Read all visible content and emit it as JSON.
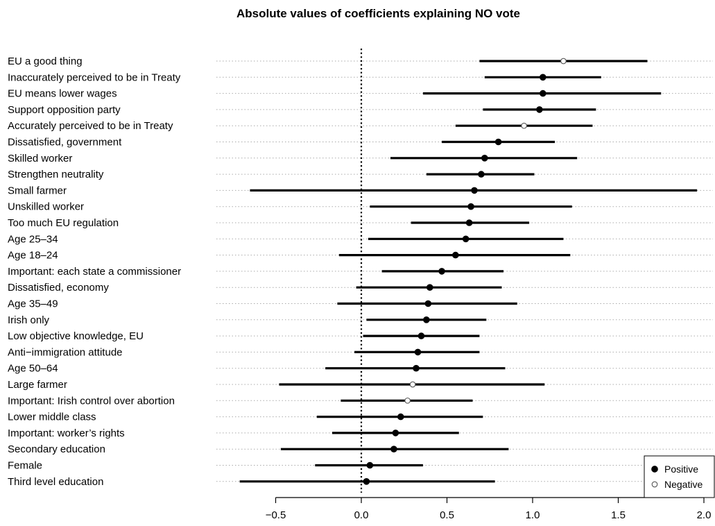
{
  "chart_data": {
    "type": "dot-interval",
    "title": "Absolute values of coefficients explaining NO vote",
    "xlabel": "",
    "ylabel": "",
    "xlim": [
      -0.7,
      2.0
    ],
    "xticks": [
      -0.5,
      0.0,
      0.5,
      1.0,
      1.5,
      2.0
    ],
    "xtick_labels": [
      "−0.5",
      "0.0",
      "0.5",
      "1.0",
      "1.5",
      "2.0"
    ],
    "reference_line": 0.0,
    "legend": {
      "placement": "bottom-right",
      "entries": [
        {
          "label": "Positive",
          "marker": "filled"
        },
        {
          "label": "Negative",
          "marker": "open"
        }
      ]
    },
    "items": [
      {
        "label": "EU a good thing",
        "estimate": 1.18,
        "lower": 0.69,
        "upper": 1.67,
        "sign": "negative"
      },
      {
        "label": "Inaccurately perceived to be in Treaty",
        "estimate": 1.06,
        "lower": 0.72,
        "upper": 1.4,
        "sign": "positive"
      },
      {
        "label": "EU means lower wages",
        "estimate": 1.06,
        "lower": 0.36,
        "upper": 1.75,
        "sign": "positive"
      },
      {
        "label": "Support opposition party",
        "estimate": 1.04,
        "lower": 0.71,
        "upper": 1.37,
        "sign": "positive"
      },
      {
        "label": "Accurately perceived to be in Treaty",
        "estimate": 0.95,
        "lower": 0.55,
        "upper": 1.35,
        "sign": "negative"
      },
      {
        "label": "Dissatisfied, government",
        "estimate": 0.8,
        "lower": 0.47,
        "upper": 1.13,
        "sign": "positive"
      },
      {
        "label": "Skilled worker",
        "estimate": 0.72,
        "lower": 0.17,
        "upper": 1.26,
        "sign": "positive"
      },
      {
        "label": "Strengthen neutrality",
        "estimate": 0.7,
        "lower": 0.38,
        "upper": 1.01,
        "sign": "positive"
      },
      {
        "label": "Small farmer",
        "estimate": 0.66,
        "lower": -0.65,
        "upper": 1.96,
        "sign": "positive"
      },
      {
        "label": "Unskilled worker",
        "estimate": 0.64,
        "lower": 0.05,
        "upper": 1.23,
        "sign": "positive"
      },
      {
        "label": "Too much EU regulation",
        "estimate": 0.63,
        "lower": 0.29,
        "upper": 0.98,
        "sign": "positive"
      },
      {
        "label": "Age 25–34",
        "estimate": 0.61,
        "lower": 0.04,
        "upper": 1.18,
        "sign": "positive"
      },
      {
        "label": "Age 18–24",
        "estimate": 0.55,
        "lower": -0.13,
        "upper": 1.22,
        "sign": "positive"
      },
      {
        "label": "Important: each state a commissioner",
        "estimate": 0.47,
        "lower": 0.12,
        "upper": 0.83,
        "sign": "positive"
      },
      {
        "label": "Dissatisfied, economy",
        "estimate": 0.4,
        "lower": -0.03,
        "upper": 0.82,
        "sign": "positive"
      },
      {
        "label": "Age 35–49",
        "estimate": 0.39,
        "lower": -0.14,
        "upper": 0.91,
        "sign": "positive"
      },
      {
        "label": "Irish only",
        "estimate": 0.38,
        "lower": 0.03,
        "upper": 0.73,
        "sign": "positive"
      },
      {
        "label": "Low objective knowledge, EU",
        "estimate": 0.35,
        "lower": 0.01,
        "upper": 0.69,
        "sign": "positive"
      },
      {
        "label": "Anti−immigration attitude",
        "estimate": 0.33,
        "lower": -0.04,
        "upper": 0.69,
        "sign": "positive"
      },
      {
        "label": "Age 50–64",
        "estimate": 0.32,
        "lower": -0.21,
        "upper": 0.84,
        "sign": "positive"
      },
      {
        "label": "Large farmer",
        "estimate": 0.3,
        "lower": -0.48,
        "upper": 1.07,
        "sign": "negative"
      },
      {
        "label": "Important: Irish control over abortion",
        "estimate": 0.27,
        "lower": -0.12,
        "upper": 0.65,
        "sign": "negative"
      },
      {
        "label": "Lower middle class",
        "estimate": 0.23,
        "lower": -0.26,
        "upper": 0.71,
        "sign": "positive"
      },
      {
        "label": "Important: worker’s rights",
        "estimate": 0.2,
        "lower": -0.17,
        "upper": 0.57,
        "sign": "positive"
      },
      {
        "label": "Secondary education",
        "estimate": 0.19,
        "lower": -0.47,
        "upper": 0.86,
        "sign": "positive"
      },
      {
        "label": "Female",
        "estimate": 0.05,
        "lower": -0.27,
        "upper": 0.36,
        "sign": "positive"
      },
      {
        "label": "Third level education",
        "estimate": 0.03,
        "lower": -0.71,
        "upper": 0.78,
        "sign": "positive"
      }
    ]
  }
}
